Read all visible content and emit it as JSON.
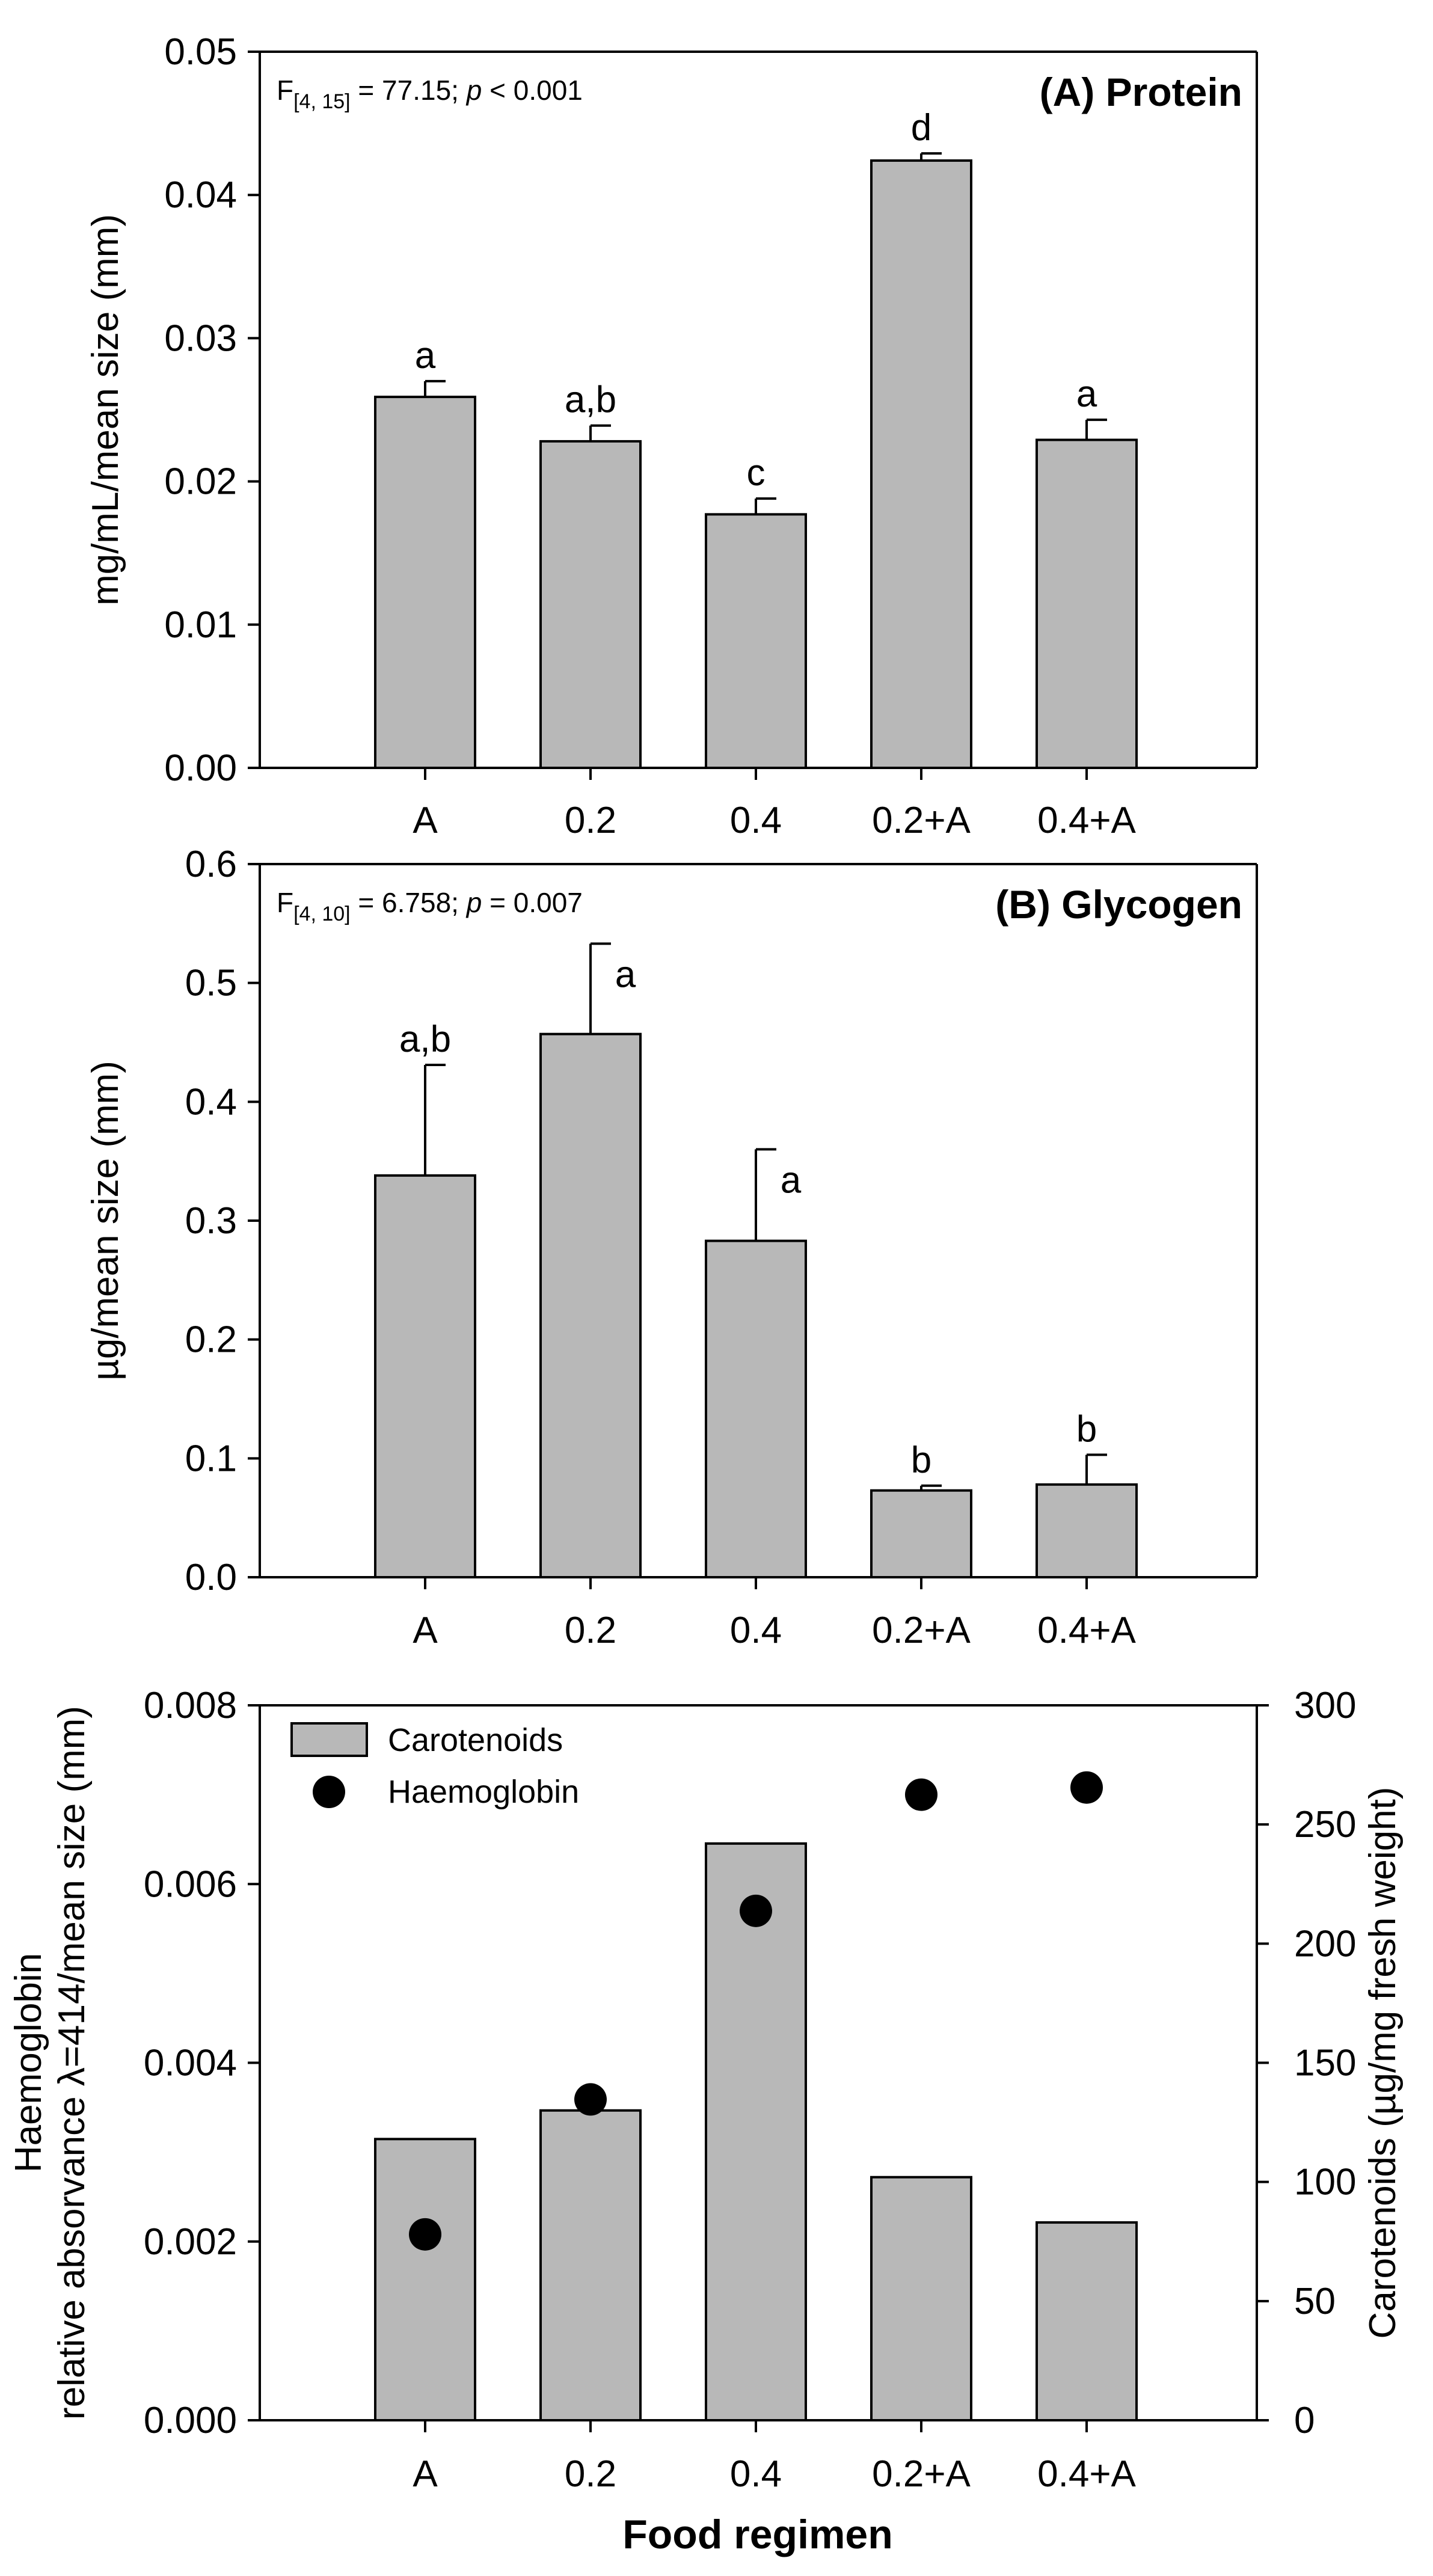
{
  "x_axis_title": "Food regimen",
  "chart_data": [
    {
      "type": "bar",
      "title": "(A) Protein",
      "stat": {
        "prefix": "F",
        "subscript": "[4, 15]",
        "middle": " = 77.15; ",
        "p": "p",
        "suffix": " < 0.001"
      },
      "categories": [
        "A",
        "0.2",
        "0.4",
        "0.2+A",
        "0.4+A"
      ],
      "values": [
        0.0259,
        0.0228,
        0.0177,
        0.0424,
        0.0229
      ],
      "errors": [
        0.0011,
        0.0011,
        0.0011,
        0.0005,
        0.0014
      ],
      "letters": [
        "a",
        "a,b",
        "c",
        "d",
        "a"
      ],
      "ylabel": "mg/mL/mean size (mm)",
      "ylim": [
        0,
        0.05
      ],
      "yticks": [
        "0.00",
        "0.01",
        "0.02",
        "0.03",
        "0.04",
        "0.05"
      ],
      "bar_color": "#b8b8b8"
    },
    {
      "type": "bar",
      "title": "(B) Glycogen",
      "stat": {
        "prefix": "F",
        "subscript": "[4, 10]",
        "middle": " = 6.758; ",
        "p": "p",
        "suffix": " = 0.007"
      },
      "categories": [
        "A",
        "0.2",
        "0.4",
        "0.2+A",
        "0.4+A"
      ],
      "values": [
        0.338,
        0.457,
        0.283,
        0.073,
        0.078
      ],
      "errors": [
        0.093,
        0.076,
        0.077,
        0.004,
        0.025
      ],
      "letters": [
        "a,b",
        "a",
        "a",
        "b",
        "b"
      ],
      "ylabel": "µg/mean size (mm)",
      "ylim": [
        0,
        0.6
      ],
      "yticks": [
        "0.0",
        "0.1",
        "0.2",
        "0.3",
        "0.4",
        "0.5",
        "0.6"
      ],
      "bar_color": "#b8b8b8"
    },
    {
      "type": "bar",
      "categories": [
        "A",
        "0.2",
        "0.4",
        "0.2+A",
        "0.4+A"
      ],
      "series": [
        {
          "name": "Carotenoids",
          "type": "bar",
          "axis": "right",
          "values": [
            118,
            130,
            242,
            102,
            83
          ],
          "color": "#b8b8b8"
        },
        {
          "name": "Haemoglobin",
          "type": "scatter",
          "axis": "left",
          "values": [
            0.00208,
            0.00359,
            0.0057,
            0.007,
            0.00708
          ],
          "color": "#000000"
        }
      ],
      "ylabel_left_line1": "Haemoglobin",
      "ylabel_left_line2": "relative absorvance λ=414/mean size (mm)",
      "ylabel_right": "Carotenoids (µg/mg fresh weight)",
      "ylim_left": [
        0,
        0.008
      ],
      "ylim_right": [
        0,
        300
      ],
      "yticks_left": [
        "0.000",
        "0.002",
        "0.004",
        "0.006",
        "0.008"
      ],
      "yticks_right": [
        "0",
        "50",
        "100",
        "150",
        "200",
        "250",
        "300"
      ],
      "legend_position": "top-left"
    }
  ]
}
